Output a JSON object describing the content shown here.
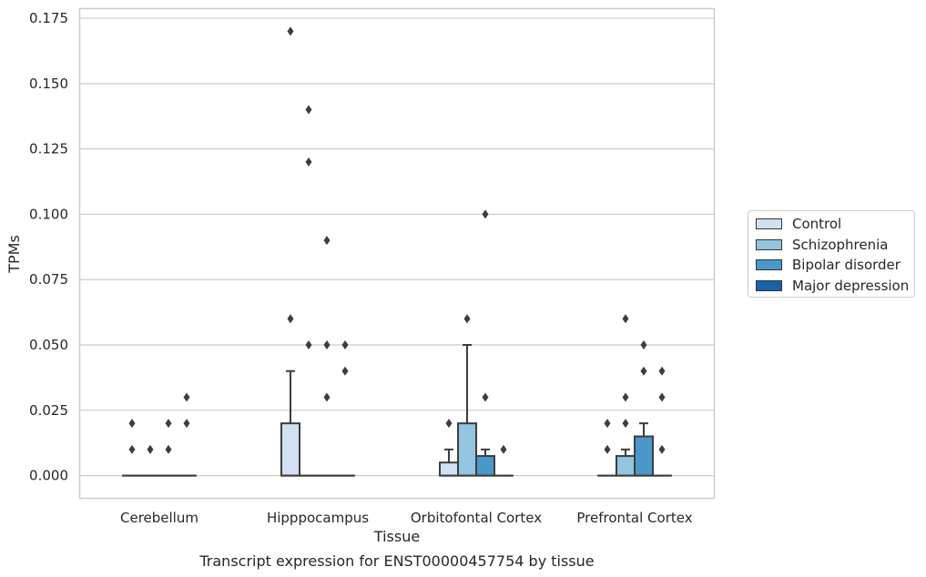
{
  "chart_data": {
    "type": "box",
    "xlabel": "Tissue",
    "ylabel": "TPMs",
    "caption": "Transcript expression for ENST00000457754 by tissue",
    "categories": [
      "Cerebellum",
      "Hipppocampus",
      "Orbitofontal Cortex",
      "Prefrontal Cortex"
    ],
    "ylim": [
      -0.0085,
      0.1785
    ],
    "yticks": [
      0.0,
      0.025,
      0.05,
      0.075,
      0.1,
      0.125,
      0.15,
      0.175
    ],
    "ytick_labels": [
      "0.000",
      "0.025",
      "0.050",
      "0.075",
      "0.100",
      "0.125",
      "0.150",
      "0.175"
    ],
    "grid": true,
    "legend_position": "right",
    "series": [
      {
        "name": "Control",
        "color": "#d0e1f2",
        "boxes": [
          {
            "q1": 0,
            "median": 0,
            "q3": 0,
            "whisker_low": 0,
            "whisker_high": 0,
            "outliers": [
              0.01,
              0.02
            ]
          },
          {
            "q1": 0,
            "median": 0,
            "q3": 0.02,
            "whisker_low": 0,
            "whisker_high": 0.04,
            "outliers": [
              0.06,
              0.17
            ]
          },
          {
            "q1": 0,
            "median": 0,
            "q3": 0.005,
            "whisker_low": 0,
            "whisker_high": 0.01,
            "outliers": [
              0.02
            ]
          },
          {
            "q1": 0,
            "median": 0,
            "q3": 0,
            "whisker_low": 0,
            "whisker_high": 0,
            "outliers": [
              0.01,
              0.02
            ]
          }
        ]
      },
      {
        "name": "Schizophrenia",
        "color": "#94c4df",
        "boxes": [
          {
            "q1": 0,
            "median": 0,
            "q3": 0,
            "whisker_low": 0,
            "whisker_high": 0,
            "outliers": [
              0.01
            ]
          },
          {
            "q1": 0,
            "median": 0,
            "q3": 0,
            "whisker_low": 0,
            "whisker_high": 0,
            "outliers": [
              0.05,
              0.12,
              0.14
            ]
          },
          {
            "q1": 0,
            "median": 0,
            "q3": 0.02,
            "whisker_low": 0,
            "whisker_high": 0.05,
            "outliers": [
              0.06
            ]
          },
          {
            "q1": 0,
            "median": 0,
            "q3": 0.0075,
            "whisker_low": 0,
            "whisker_high": 0.01,
            "outliers": [
              0.02,
              0.03,
              0.06
            ]
          }
        ]
      },
      {
        "name": "Bipolar disorder",
        "color": "#4a98c9",
        "boxes": [
          {
            "q1": 0,
            "median": 0,
            "q3": 0,
            "whisker_low": 0,
            "whisker_high": 0,
            "outliers": [
              0.01,
              0.02
            ]
          },
          {
            "q1": 0,
            "median": 0,
            "q3": 0,
            "whisker_low": 0,
            "whisker_high": 0,
            "outliers": [
              0.03,
              0.05,
              0.09
            ]
          },
          {
            "q1": 0,
            "median": 0,
            "q3": 0.0075,
            "whisker_low": 0,
            "whisker_high": 0.01,
            "outliers": [
              0.03,
              0.1
            ]
          },
          {
            "q1": 0,
            "median": 0,
            "q3": 0.015,
            "whisker_low": 0,
            "whisker_high": 0.02,
            "outliers": [
              0.04,
              0.05
            ]
          }
        ]
      },
      {
        "name": "Major depression",
        "color": "#1764ab",
        "boxes": [
          {
            "q1": 0,
            "median": 0,
            "q3": 0,
            "whisker_low": 0,
            "whisker_high": 0,
            "outliers": [
              0.02,
              0.03
            ]
          },
          {
            "q1": 0,
            "median": 0,
            "q3": 0,
            "whisker_low": 0,
            "whisker_high": 0,
            "outliers": [
              0.04,
              0.05
            ]
          },
          {
            "q1": 0,
            "median": 0,
            "q3": 0,
            "whisker_low": 0,
            "whisker_high": 0,
            "outliers": [
              0.01
            ]
          },
          {
            "q1": 0,
            "median": 0,
            "q3": 0,
            "whisker_low": 0,
            "whisker_high": 0,
            "outliers": [
              0.01,
              0.03,
              0.04
            ]
          }
        ]
      }
    ]
  }
}
